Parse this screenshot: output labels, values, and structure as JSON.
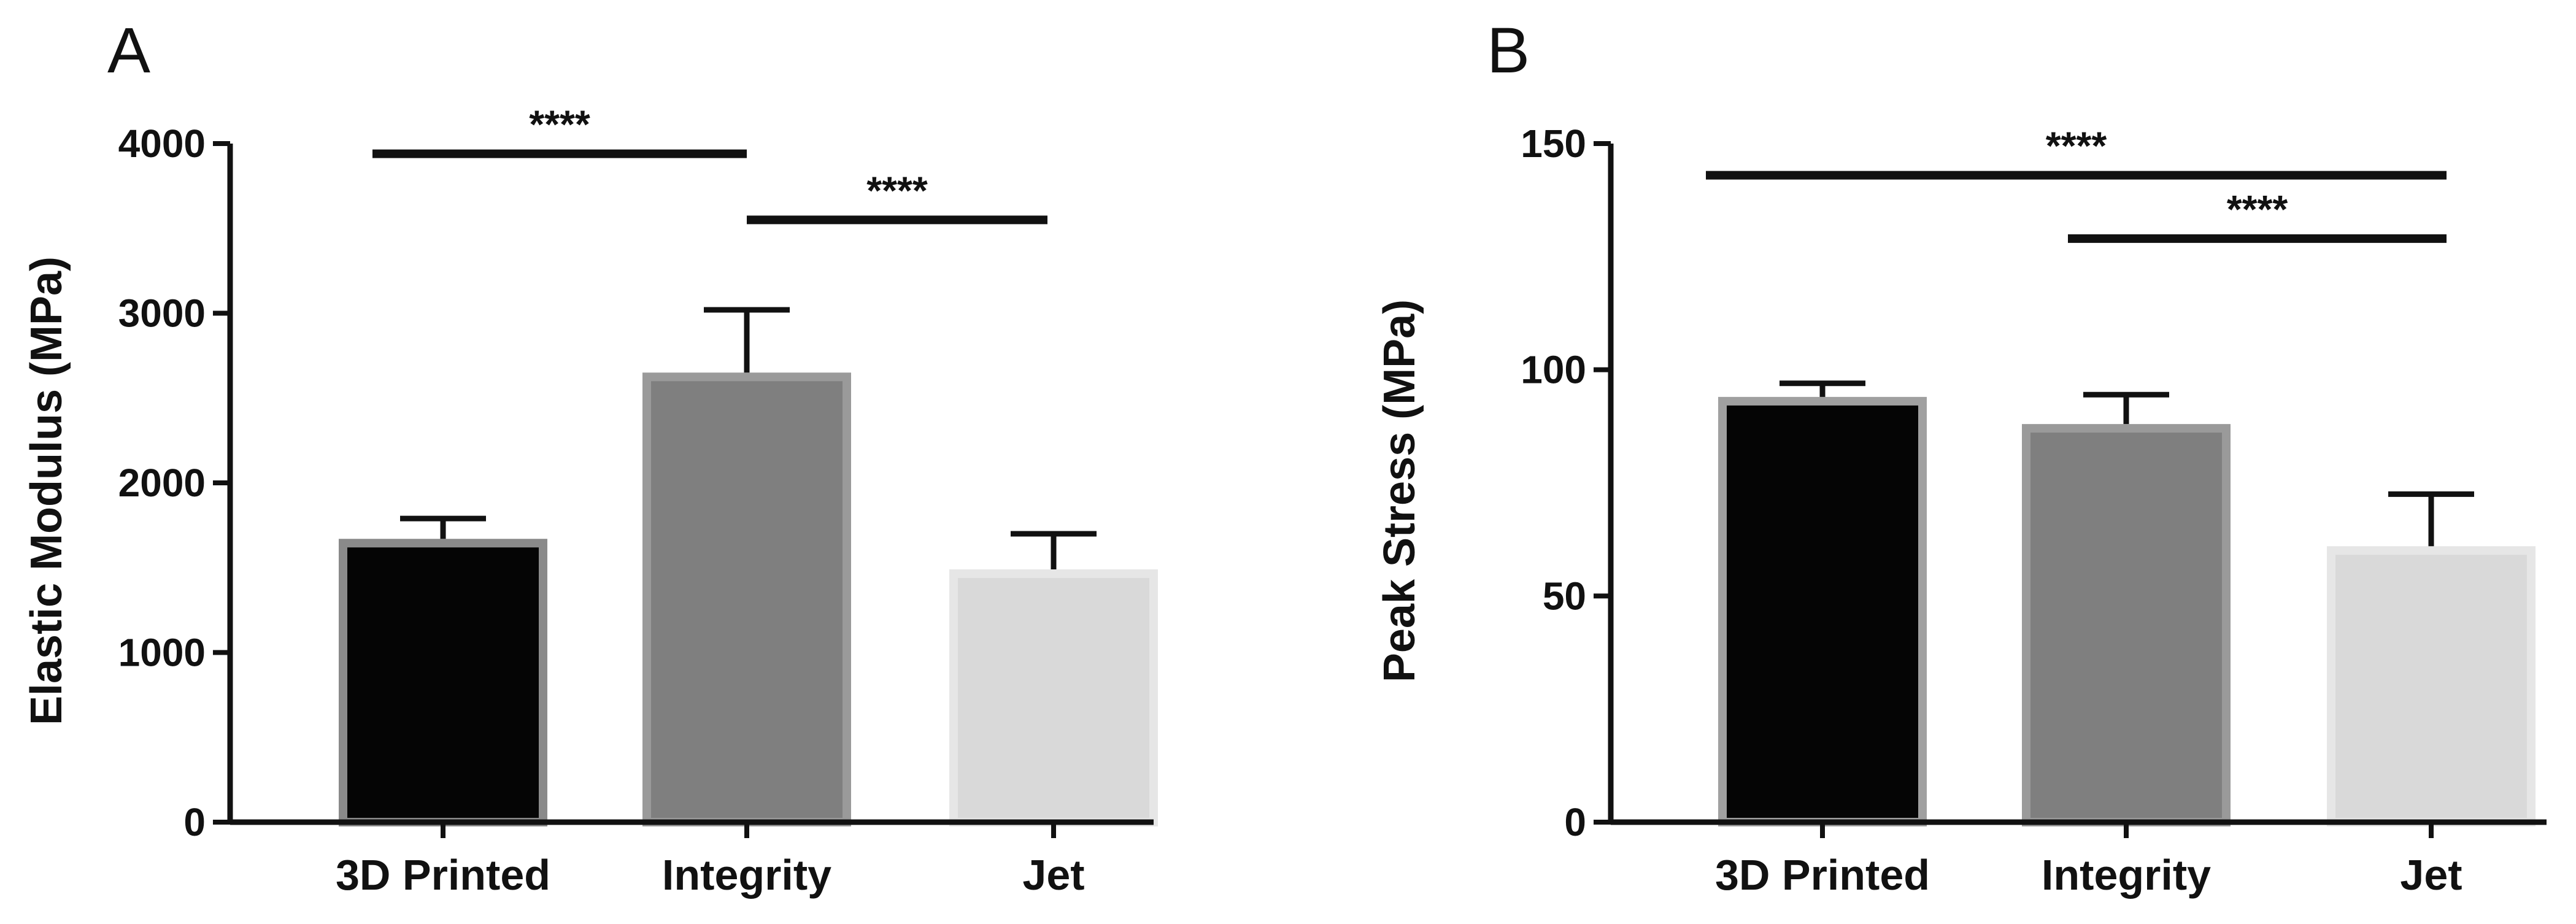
{
  "chart_data": [
    {
      "type": "bar",
      "panel_label": "A",
      "ylabel": "Elastic Modulus (MPa)",
      "xlabel": "",
      "ylim": [
        0,
        4000
      ],
      "yticks": [
        0,
        1000,
        2000,
        3000,
        4000
      ],
      "categories": [
        "3D Printed",
        "Integrity",
        "Jet"
      ],
      "values": [
        1670,
        2650,
        1490
      ],
      "errors": [
        120,
        370,
        210
      ],
      "bar_fill": [
        "#050505",
        "#7f7f7f",
        "#d9d9d9"
      ],
      "bar_edge": [
        "#8a8a8a",
        "#9a9a9a",
        "#e6e6e6"
      ],
      "significance": [
        {
          "from": "3D Printed",
          "to": "Integrity",
          "label": "****",
          "y": 3940
        },
        {
          "from": "Integrity",
          "to": "Jet",
          "label": "****",
          "y": 3550
        }
      ],
      "grid": false,
      "legend": "none"
    },
    {
      "type": "bar",
      "panel_label": "B",
      "ylabel": "Peak Stress (MPa)",
      "xlabel": "",
      "ylim": [
        0,
        150
      ],
      "yticks": [
        0,
        50,
        100,
        150
      ],
      "categories": [
        "3D Printed",
        "Integrity",
        "Jet"
      ],
      "values": [
        94,
        88,
        61
      ],
      "errors": [
        3,
        6.5,
        11.5
      ],
      "bar_fill": [
        "#050505",
        "#7f7f7f",
        "#d9d9d9"
      ],
      "bar_edge": [
        "#a0a0a0",
        "#9a9a9a",
        "#e6e6e6"
      ],
      "significance": [
        {
          "from": "3D Printed",
          "to": "Jet",
          "label": "****",
          "y": 143
        },
        {
          "from": "Integrity",
          "to": "Jet",
          "label": "****",
          "y": 129
        }
      ],
      "grid": false,
      "legend": "none"
    }
  ]
}
